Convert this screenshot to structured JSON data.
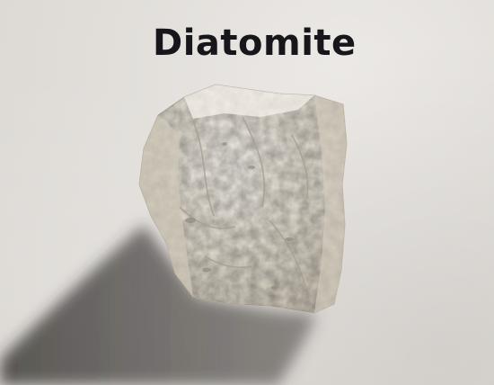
{
  "image": {
    "title": "Diatomite",
    "subject": "diatomite-rock-sample",
    "colors": {
      "background": "#e2dfdb",
      "title_text": "#17161a",
      "rock_light": "#efebe3",
      "rock_mid": "#d9d2c4",
      "rock_shadow_tone": "#b7b0a3",
      "cast_shadow": "#4a4643"
    }
  }
}
